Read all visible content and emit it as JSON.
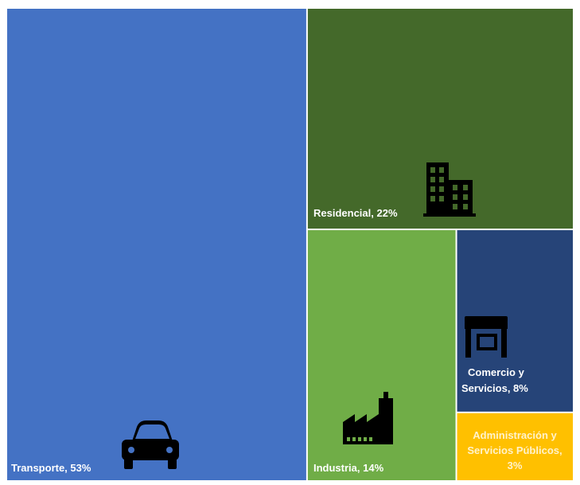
{
  "chart_data": {
    "type": "treemap",
    "title": "",
    "items": [
      {
        "label": "Transporte, 53%",
        "name": "Transporte",
        "value": 53,
        "color": "#4472c4",
        "label_color": "#ffffff",
        "icon": "car-icon"
      },
      {
        "label": "Residencial, 22%",
        "name": "Residencial",
        "value": 22,
        "color": "#44692a",
        "label_color": "#ffffff",
        "icon": "building-icon"
      },
      {
        "label": "Industria, 14%",
        "name": "Industria",
        "value": 14,
        "color": "#70ad47",
        "label_color": "#ffffff",
        "icon": "factory-icon"
      },
      {
        "label_lines": [
          "Comercio y",
          "Servicios, 8%"
        ],
        "name": "Comercio y Servicios",
        "value": 8,
        "color": "#264478",
        "label_color": "#ffffff",
        "icon": "store-icon"
      },
      {
        "label_lines": [
          "Administración y",
          "Servicios Públicos,",
          "3%"
        ],
        "name": "Administración y Servicios Públicos",
        "value": 3,
        "color": "#ffc000",
        "label_color": "#fff2cc",
        "icon": ""
      }
    ]
  }
}
